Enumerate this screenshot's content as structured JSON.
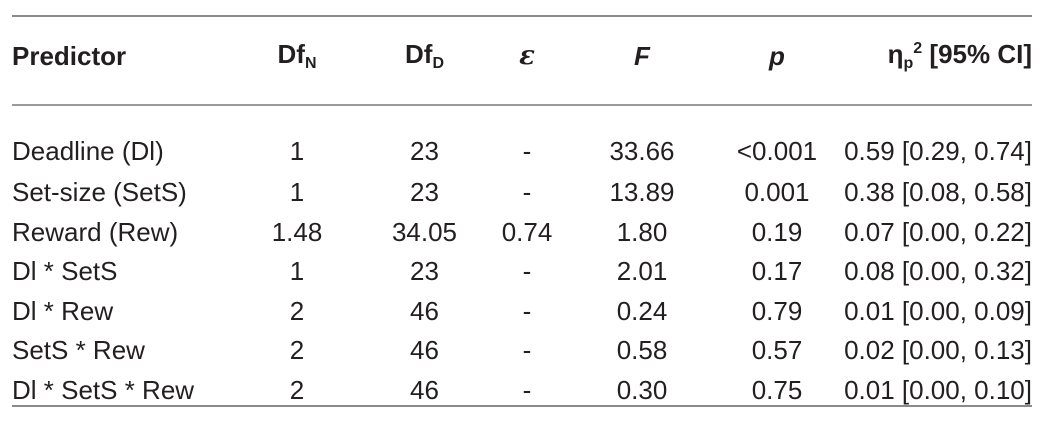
{
  "table": {
    "headers": {
      "predictor": "Predictor",
      "dfn_base": "Df",
      "dfn_sub": "N",
      "dfd_base": "Df",
      "dfd_sub": "D",
      "epsilon": "ε",
      "f": "F",
      "p": "p",
      "eta_base": "η",
      "eta_sub": "p",
      "eta_sup": "2",
      "eta_rest": " [95% CI]"
    },
    "rows": [
      {
        "predictor": "Deadline (Dl)",
        "dfn": "1",
        "dfd": "23",
        "epsilon": "-",
        "f": "33.66",
        "p": "<0.001",
        "eta": "0.59 [0.29, 0.74]"
      },
      {
        "predictor": "Set-size (SetS)",
        "dfn": "1",
        "dfd": "23",
        "epsilon": "-",
        "f": "13.89",
        "p": "0.001",
        "eta": "0.38 [0.08, 0.58]"
      },
      {
        "predictor": "Reward (Rew)",
        "dfn": "1.48",
        "dfd": "34.05",
        "epsilon": "0.74",
        "f": "1.80",
        "p": "0.19",
        "eta": "0.07 [0.00, 0.22]"
      },
      {
        "predictor": "Dl * SetS",
        "dfn": "1",
        "dfd": "23",
        "epsilon": "-",
        "f": "2.01",
        "p": "0.17",
        "eta": "0.08 [0.00, 0.32]"
      },
      {
        "predictor": "Dl * Rew",
        "dfn": "2",
        "dfd": "46",
        "epsilon": "-",
        "f": "0.24",
        "p": "0.79",
        "eta": "0.01 [0.00, 0.09]"
      },
      {
        "predictor": "SetS * Rew",
        "dfn": "2",
        "dfd": "46",
        "epsilon": "-",
        "f": "0.58",
        "p": "0.57",
        "eta": "0.02 [0.00, 0.13]"
      },
      {
        "predictor": "Dl * SetS * Rew",
        "dfn": "2",
        "dfd": "46",
        "epsilon": "-",
        "f": "0.30",
        "p": "0.75",
        "eta": "0.01 [0.00, 0.10]"
      }
    ]
  }
}
